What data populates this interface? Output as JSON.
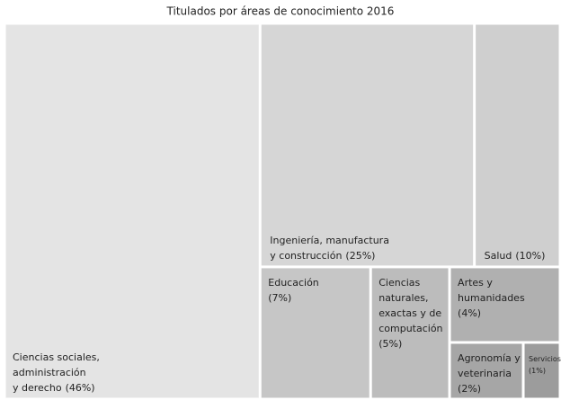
{
  "chart_data": {
    "type": "treemap",
    "title": "Titulados por áreas de conocimiento 2016",
    "categories": [
      [
        "Ciencias sociales,",
        "administración",
        "y derecho"
      ],
      [
        "Ingeniería, manufactura",
        "y construcción"
      ],
      [
        "Salud"
      ],
      [
        "Educación"
      ],
      [
        "Ciencias",
        "naturales,",
        "exactas y de",
        "computación"
      ],
      [
        "Artes y",
        "humanidades"
      ],
      [
        "Agronomía y",
        "veterinaria"
      ],
      [
        "Servicios"
      ]
    ],
    "values": [
      46,
      25,
      10,
      7,
      5,
      4,
      2,
      1
    ],
    "value_labels": [
      "(46%)",
      "(25%)",
      "(10%)",
      "(7%)",
      "(5%)",
      "(4%)",
      "(2%)",
      "(1%)"
    ],
    "colors": [
      "#e4e4e4",
      "#d6d6d6",
      "#cfcfcf",
      "#c6c6c6",
      "#bcbcbc",
      "#b0b0b0",
      "#a6a6a6",
      "#9c9c9c"
    ]
  }
}
